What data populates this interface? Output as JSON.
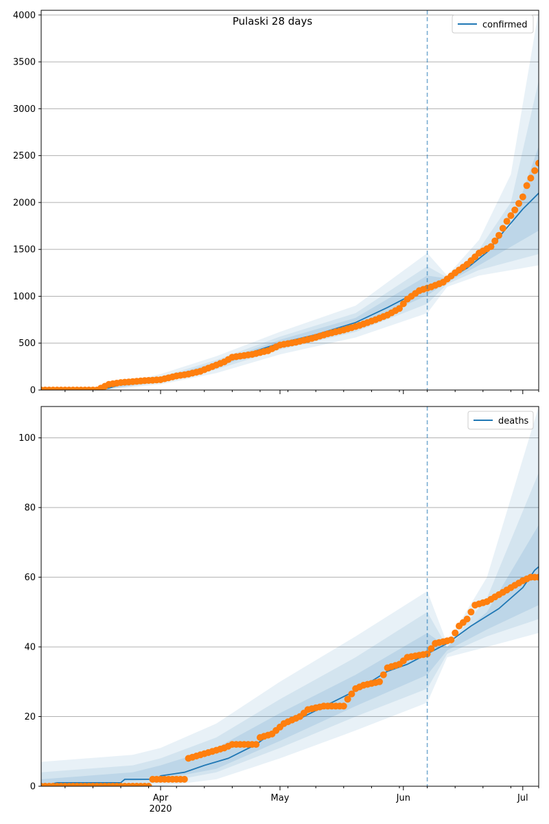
{
  "title": "Pulaski 28 days",
  "colors": {
    "model": "#1f77b4",
    "observed": "#ff7f0e",
    "grid": "#b0b0b0",
    "cutoff": "#1f77b4"
  },
  "x_axis": {
    "start": "2020-03-02",
    "end": "2020-07-05",
    "major_ticks": [
      {
        "date": "2020-04-01",
        "label": "Apr",
        "sublabel": "2020"
      },
      {
        "date": "2020-05-01",
        "label": "May",
        "sublabel": ""
      },
      {
        "date": "2020-06-01",
        "label": "Jun",
        "sublabel": ""
      },
      {
        "date": "2020-07-01",
        "label": "Jul",
        "sublabel": ""
      }
    ],
    "forecast_start": "2020-06-07"
  },
  "chart_data": [
    {
      "type": "line",
      "title": "Pulaski 28 days",
      "legend": {
        "label": "confirmed",
        "placement": "top-right"
      },
      "grid": "y",
      "ylim": [
        0,
        4050
      ],
      "yticks": [
        0,
        500,
        1000,
        1500,
        2000,
        2500,
        3000,
        3500,
        4000
      ],
      "model_median": [
        [
          "2020-03-02",
          0
        ],
        [
          "2020-03-15",
          0
        ],
        [
          "2020-03-19",
          20
        ],
        [
          "2020-03-22",
          60
        ],
        [
          "2020-03-27",
          90
        ],
        [
          "2020-04-01",
          110
        ],
        [
          "2020-04-07",
          170
        ],
        [
          "2020-04-15",
          270
        ],
        [
          "2020-04-20",
          350
        ],
        [
          "2020-05-01",
          500
        ],
        [
          "2020-05-10",
          590
        ],
        [
          "2020-05-20",
          720
        ],
        [
          "2020-05-28",
          880
        ],
        [
          "2020-06-02",
          990
        ],
        [
          "2020-06-07",
          1100
        ],
        [
          "2020-06-12",
          1180
        ],
        [
          "2020-06-17",
          1300
        ],
        [
          "2020-06-22",
          1470
        ],
        [
          "2020-06-26",
          1680
        ],
        [
          "2020-07-01",
          1930
        ],
        [
          "2020-07-05",
          2100
        ]
      ],
      "bands": [
        {
          "level": "outer",
          "lower": [
            [
              "2020-03-02",
              0
            ],
            [
              "2020-03-19",
              5
            ],
            [
              "2020-04-01",
              60
            ],
            [
              "2020-04-15",
              180
            ],
            [
              "2020-05-01",
              380
            ],
            [
              "2020-05-20",
              560
            ],
            [
              "2020-06-07",
              820
            ],
            [
              "2020-06-12",
              1100
            ],
            [
              "2020-06-20",
              1220
            ],
            [
              "2020-07-05",
              1330
            ]
          ],
          "upper": [
            [
              "2020-03-02",
              10
            ],
            [
              "2020-03-19",
              40
            ],
            [
              "2020-04-01",
              170
            ],
            [
              "2020-04-15",
              360
            ],
            [
              "2020-05-01",
              620
            ],
            [
              "2020-05-20",
              900
            ],
            [
              "2020-06-07",
              1460
            ],
            [
              "2020-06-12",
              1220
            ],
            [
              "2020-06-20",
              1600
            ],
            [
              "2020-06-28",
              2300
            ],
            [
              "2020-07-05",
              4050
            ]
          ]
        },
        {
          "level": "mid",
          "lower": [
            [
              "2020-03-02",
              0
            ],
            [
              "2020-03-19",
              10
            ],
            [
              "2020-04-01",
              80
            ],
            [
              "2020-04-15",
              220
            ],
            [
              "2020-05-01",
              430
            ],
            [
              "2020-05-20",
              620
            ],
            [
              "2020-06-07",
              920
            ],
            [
              "2020-06-12",
              1130
            ],
            [
              "2020-06-20",
              1280
            ],
            [
              "2020-07-05",
              1450
            ]
          ],
          "upper": [
            [
              "2020-03-02",
              5
            ],
            [
              "2020-03-19",
              30
            ],
            [
              "2020-04-01",
              140
            ],
            [
              "2020-04-15",
              320
            ],
            [
              "2020-05-01",
              570
            ],
            [
              "2020-05-20",
              820
            ],
            [
              "2020-06-07",
              1320
            ],
            [
              "2020-06-12",
              1200
            ],
            [
              "2020-06-20",
              1500
            ],
            [
              "2020-06-28",
              2000
            ],
            [
              "2020-07-05",
              3300
            ]
          ]
        },
        {
          "level": "inner",
          "lower": [
            [
              "2020-03-02",
              0
            ],
            [
              "2020-03-19",
              15
            ],
            [
              "2020-04-01",
              95
            ],
            [
              "2020-04-15",
              245
            ],
            [
              "2020-05-01",
              465
            ],
            [
              "2020-05-20",
              670
            ],
            [
              "2020-06-07",
              1010
            ],
            [
              "2020-06-12",
              1150
            ],
            [
              "2020-06-20",
              1330
            ],
            [
              "2020-07-05",
              1700
            ]
          ],
          "upper": [
            [
              "2020-03-02",
              2
            ],
            [
              "2020-03-19",
              25
            ],
            [
              "2020-04-01",
              125
            ],
            [
              "2020-04-15",
              295
            ],
            [
              "2020-05-01",
              535
            ],
            [
              "2020-05-20",
              770
            ],
            [
              "2020-06-07",
              1220
            ],
            [
              "2020-06-12",
              1190
            ],
            [
              "2020-06-20",
              1420
            ],
            [
              "2020-06-28",
              1750
            ],
            [
              "2020-07-05",
              2600
            ]
          ]
        }
      ],
      "observed": [
        [
          "2020-03-02",
          0
        ],
        [
          "2020-03-16",
          0
        ],
        [
          "2020-03-19",
          60
        ],
        [
          "2020-03-22",
          80
        ],
        [
          "2020-03-25",
          90
        ],
        [
          "2020-03-28",
          100
        ],
        [
          "2020-04-01",
          110
        ],
        [
          "2020-04-05",
          150
        ],
        [
          "2020-04-08",
          170
        ],
        [
          "2020-04-11",
          200
        ],
        [
          "2020-04-14",
          250
        ],
        [
          "2020-04-17",
          300
        ],
        [
          "2020-04-19",
          350
        ],
        [
          "2020-04-24",
          380
        ],
        [
          "2020-04-28",
          420
        ],
        [
          "2020-05-01",
          480
        ],
        [
          "2020-05-05",
          510
        ],
        [
          "2020-05-09",
          550
        ],
        [
          "2020-05-13",
          600
        ],
        [
          "2020-05-17",
          640
        ],
        [
          "2020-05-21",
          690
        ],
        [
          "2020-05-25",
          750
        ],
        [
          "2020-05-28",
          800
        ],
        [
          "2020-05-31",
          870
        ],
        [
          "2020-06-02",
          970
        ],
        [
          "2020-06-05",
          1060
        ],
        [
          "2020-06-08",
          1100
        ],
        [
          "2020-06-11",
          1150
        ],
        [
          "2020-06-14",
          1250
        ],
        [
          "2020-06-17",
          1340
        ],
        [
          "2020-06-20",
          1460
        ],
        [
          "2020-06-23",
          1530
        ],
        [
          "2020-06-25",
          1650
        ],
        [
          "2020-06-27",
          1800
        ],
        [
          "2020-06-29",
          1920
        ],
        [
          "2020-07-01",
          2060
        ],
        [
          "2020-07-02",
          2180
        ],
        [
          "2020-07-03",
          2260
        ],
        [
          "2020-07-04",
          2340
        ],
        [
          "2020-07-05",
          2420
        ]
      ]
    },
    {
      "type": "line",
      "title": "",
      "legend": {
        "label": "deaths",
        "placement": "top-right"
      },
      "grid": "y",
      "ylim": [
        0,
        109
      ],
      "yticks": [
        0,
        20,
        40,
        60,
        80,
        100
      ],
      "model_median": [
        [
          "2020-03-02",
          0
        ],
        [
          "2020-03-06",
          1
        ],
        [
          "2020-03-22",
          1
        ],
        [
          "2020-03-23",
          2
        ],
        [
          "2020-03-31",
          2
        ],
        [
          "2020-04-01",
          3
        ],
        [
          "2020-04-07",
          4
        ],
        [
          "2020-04-12",
          6
        ],
        [
          "2020-04-18",
          8
        ],
        [
          "2020-04-25",
          12
        ],
        [
          "2020-05-01",
          17
        ],
        [
          "2020-05-07",
          20
        ],
        [
          "2020-05-14",
          24
        ],
        [
          "2020-05-21",
          28
        ],
        [
          "2020-05-28",
          33
        ],
        [
          "2020-06-02",
          35
        ],
        [
          "2020-06-07",
          38
        ],
        [
          "2020-06-12",
          41
        ],
        [
          "2020-06-18",
          46
        ],
        [
          "2020-06-25",
          51
        ],
        [
          "2020-07-01",
          57
        ],
        [
          "2020-07-04",
          62
        ],
        [
          "2020-07-05",
          63
        ]
      ],
      "bands": [
        {
          "level": "outer",
          "lower": [
            [
              "2020-03-02",
              0
            ],
            [
              "2020-04-01",
              0
            ],
            [
              "2020-04-15",
              2
            ],
            [
              "2020-05-01",
              8
            ],
            [
              "2020-05-20",
              16
            ],
            [
              "2020-06-07",
              24
            ],
            [
              "2020-06-12",
              37
            ],
            [
              "2020-06-22",
              40
            ],
            [
              "2020-07-05",
              44
            ]
          ],
          "upper": [
            [
              "2020-03-02",
              7
            ],
            [
              "2020-03-25",
              9
            ],
            [
              "2020-04-01",
              11
            ],
            [
              "2020-04-15",
              18
            ],
            [
              "2020-05-01",
              30
            ],
            [
              "2020-05-20",
              43
            ],
            [
              "2020-06-07",
              56
            ],
            [
              "2020-06-12",
              41
            ],
            [
              "2020-06-22",
              60
            ],
            [
              "2020-07-05",
              109
            ]
          ]
        },
        {
          "level": "mid",
          "lower": [
            [
              "2020-03-02",
              0
            ],
            [
              "2020-04-01",
              1
            ],
            [
              "2020-04-15",
              4
            ],
            [
              "2020-05-01",
              11
            ],
            [
              "2020-05-20",
              20
            ],
            [
              "2020-06-07",
              28
            ],
            [
              "2020-06-12",
              38
            ],
            [
              "2020-06-22",
              43
            ],
            [
              "2020-07-05",
              48
            ]
          ],
          "upper": [
            [
              "2020-03-02",
              4
            ],
            [
              "2020-03-25",
              6
            ],
            [
              "2020-04-01",
              8
            ],
            [
              "2020-04-15",
              14
            ],
            [
              "2020-05-01",
              25
            ],
            [
              "2020-05-20",
              37
            ],
            [
              "2020-06-07",
              50
            ],
            [
              "2020-06-12",
              40
            ],
            [
              "2020-06-22",
              54
            ],
            [
              "2020-07-05",
              90
            ]
          ]
        },
        {
          "level": "inner",
          "lower": [
            [
              "2020-03-02",
              0
            ],
            [
              "2020-04-01",
              2
            ],
            [
              "2020-04-15",
              5
            ],
            [
              "2020-05-01",
              13
            ],
            [
              "2020-05-20",
              23
            ],
            [
              "2020-06-07",
              32
            ],
            [
              "2020-06-12",
              39
            ],
            [
              "2020-06-22",
              45
            ],
            [
              "2020-07-05",
              52
            ]
          ],
          "upper": [
            [
              "2020-03-02",
              2
            ],
            [
              "2020-03-25",
              4
            ],
            [
              "2020-04-01",
              6
            ],
            [
              "2020-04-15",
              11
            ],
            [
              "2020-05-01",
              21
            ],
            [
              "2020-05-20",
              32
            ],
            [
              "2020-06-07",
              44
            ],
            [
              "2020-06-12",
              40
            ],
            [
              "2020-06-22",
              50
            ],
            [
              "2020-07-05",
              75
            ]
          ]
        }
      ],
      "observed": [
        [
          "2020-03-02",
          0
        ],
        [
          "2020-03-29",
          0
        ],
        [
          "2020-03-30",
          2
        ],
        [
          "2020-04-07",
          2
        ],
        [
          "2020-04-08",
          8
        ],
        [
          "2020-04-11",
          9
        ],
        [
          "2020-04-14",
          10
        ],
        [
          "2020-04-17",
          11
        ],
        [
          "2020-04-19",
          12
        ],
        [
          "2020-04-25",
          12
        ],
        [
          "2020-04-26",
          14
        ],
        [
          "2020-04-29",
          15
        ],
        [
          "2020-05-02",
          18
        ],
        [
          "2020-05-04",
          19
        ],
        [
          "2020-05-06",
          20
        ],
        [
          "2020-05-08",
          22
        ],
        [
          "2020-05-12",
          23
        ],
        [
          "2020-05-17",
          23
        ],
        [
          "2020-05-18",
          25
        ],
        [
          "2020-05-20",
          28
        ],
        [
          "2020-05-22",
          29
        ],
        [
          "2020-05-26",
          30
        ],
        [
          "2020-05-28",
          34
        ],
        [
          "2020-05-31",
          35
        ],
        [
          "2020-06-02",
          37
        ],
        [
          "2020-06-07",
          38
        ],
        [
          "2020-06-09",
          41
        ],
        [
          "2020-06-13",
          42
        ],
        [
          "2020-06-15",
          46
        ],
        [
          "2020-06-17",
          48
        ],
        [
          "2020-06-19",
          52
        ],
        [
          "2020-06-22",
          53
        ],
        [
          "2020-06-25",
          55
        ],
        [
          "2020-06-28",
          57
        ],
        [
          "2020-07-01",
          59
        ],
        [
          "2020-07-03",
          60
        ],
        [
          "2020-07-05",
          60
        ]
      ]
    }
  ]
}
